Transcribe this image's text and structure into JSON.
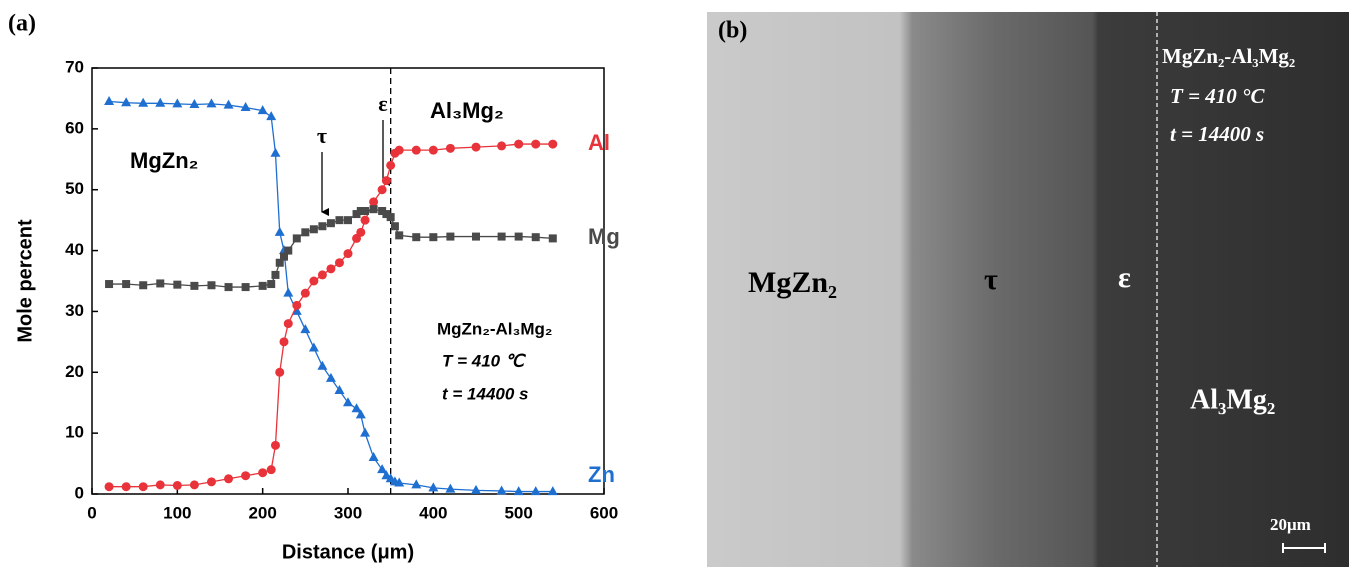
{
  "chart_data": {
    "type": "line",
    "panel_label": "(a)",
    "x_label": "Distance (μm)",
    "y_label": "Mole percent",
    "x": [
      20,
      40,
      60,
      80,
      100,
      120,
      140,
      160,
      180,
      200,
      210,
      215,
      220,
      225,
      230,
      240,
      250,
      260,
      270,
      280,
      290,
      300,
      310,
      315,
      320,
      330,
      340,
      345,
      350,
      355,
      360,
      380,
      400,
      420,
      450,
      480,
      500,
      520,
      540
    ],
    "series": [
      {
        "name": "Zn",
        "color": "#1f6fd1",
        "marker": "triangle",
        "values": [
          64.5,
          64.3,
          64.2,
          64.2,
          64.1,
          64.0,
          64.1,
          63.9,
          63.5,
          63,
          62,
          56,
          43,
          40,
          33,
          30,
          27,
          24,
          21,
          19,
          17,
          15,
          14,
          13,
          10,
          6,
          4,
          3,
          2.5,
          2,
          1.8,
          1.5,
          1,
          0.8,
          0.6,
          0.5,
          0.4,
          0.4,
          0.4
        ]
      },
      {
        "name": "Al",
        "color": "#e8333a",
        "marker": "circle",
        "values": [
          1.2,
          1.2,
          1.2,
          1.5,
          1.4,
          1.5,
          2,
          2.5,
          3,
          3.5,
          4,
          8,
          20,
          25,
          28,
          31,
          33,
          35,
          36,
          37,
          38,
          39.5,
          42,
          43,
          45,
          48,
          50,
          51.5,
          54,
          56,
          56.5,
          56.5,
          56.5,
          56.8,
          57,
          57.2,
          57.5,
          57.5,
          57.5
        ]
      },
      {
        "name": "Mg",
        "color": "#4a4a4a",
        "marker": "square",
        "values": [
          34.5,
          34.5,
          34.3,
          34.6,
          34.4,
          34.2,
          34.3,
          34,
          34,
          34.2,
          34.5,
          36,
          38,
          39,
          40,
          42,
          43,
          43.5,
          44,
          44.5,
          45,
          45,
          46,
          46.5,
          46.5,
          46.8,
          46.5,
          46,
          45.5,
          44,
          42.5,
          42.2,
          42.2,
          42.3,
          42.3,
          42.3,
          42.3,
          42.2,
          42
        ]
      }
    ],
    "xlim": [
      0,
      600
    ],
    "xticks": [
      0,
      100,
      200,
      300,
      400,
      500,
      600
    ],
    "ylim": [
      0,
      70
    ],
    "yticks": [
      0,
      10,
      20,
      30,
      40,
      50,
      60,
      70
    ],
    "boundary_x": 350,
    "annotations": {
      "left_phase": "MgZn₂",
      "right_phase": "Al₃Mg₂",
      "tau": "τ",
      "epsilon": "ε",
      "couple": "MgZn₂-Al₃Mg₂",
      "temperature": "T = 410 ℃",
      "time": "t = 14400 s"
    }
  },
  "image_b": {
    "panel_label": "(b)",
    "couple": "MgZn₂-Al₃Mg₂",
    "temperature": "T = 410 °C",
    "time": "t = 14400 s",
    "left_phase": "MgZn₂",
    "tau": "τ",
    "epsilon": "ε",
    "right_phase": "Al₃Mg₂",
    "scale_bar": "20μm"
  }
}
